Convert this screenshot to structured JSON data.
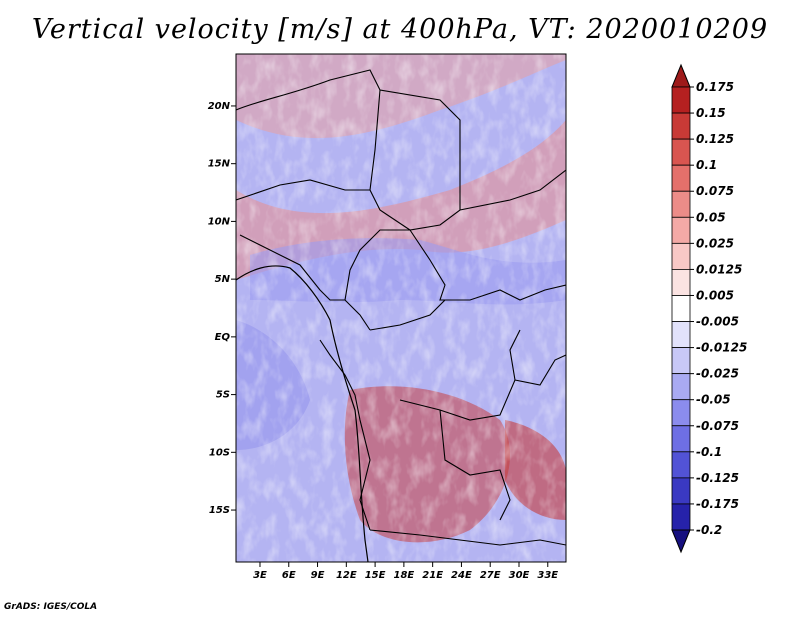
{
  "title": "Vertical velocity [m/s] at 400hPa, VT: 2020010209",
  "footer": "GrADS: IGES/COLA",
  "map": {
    "lat_labels": [
      "20N",
      "15N",
      "10N",
      "5N",
      "EQ",
      "5S",
      "10S",
      "15S"
    ],
    "lat_values": [
      20,
      15,
      10,
      5,
      0,
      -5,
      -10,
      -15
    ],
    "lon_labels": [
      "3E",
      "6E",
      "9E",
      "12E",
      "15E",
      "18E",
      "21E",
      "24E",
      "27E",
      "30E",
      "33E"
    ],
    "lon_values": [
      3,
      6,
      9,
      12,
      15,
      18,
      21,
      24,
      27,
      30,
      33
    ],
    "lon_range": [
      0.5,
      34.9
    ],
    "lat_range": [
      -19.5,
      24.5
    ]
  },
  "colorbar": {
    "labels": [
      "0.175",
      "0.15",
      "0.125",
      "0.1",
      "0.075",
      "0.05",
      "0.025",
      "0.0125",
      "0.005",
      "-0.005",
      "-0.0125",
      "-0.025",
      "-0.05",
      "-0.075",
      "-0.1",
      "-0.125",
      "-0.175",
      "-0.2"
    ],
    "colors": [
      "#9e1a1a",
      "#b52020",
      "#c83a36",
      "#d95550",
      "#e4706b",
      "#ec8c88",
      "#f3a9a6",
      "#f8c8c6",
      "#fbe3e2",
      "#ffffff",
      "#e2e2fb",
      "#c8c8f7",
      "#a9aaf2",
      "#8b8ced",
      "#6e6fe4",
      "#5253d6",
      "#3a39c2",
      "#2622aa",
      "#16107f"
    ]
  }
}
